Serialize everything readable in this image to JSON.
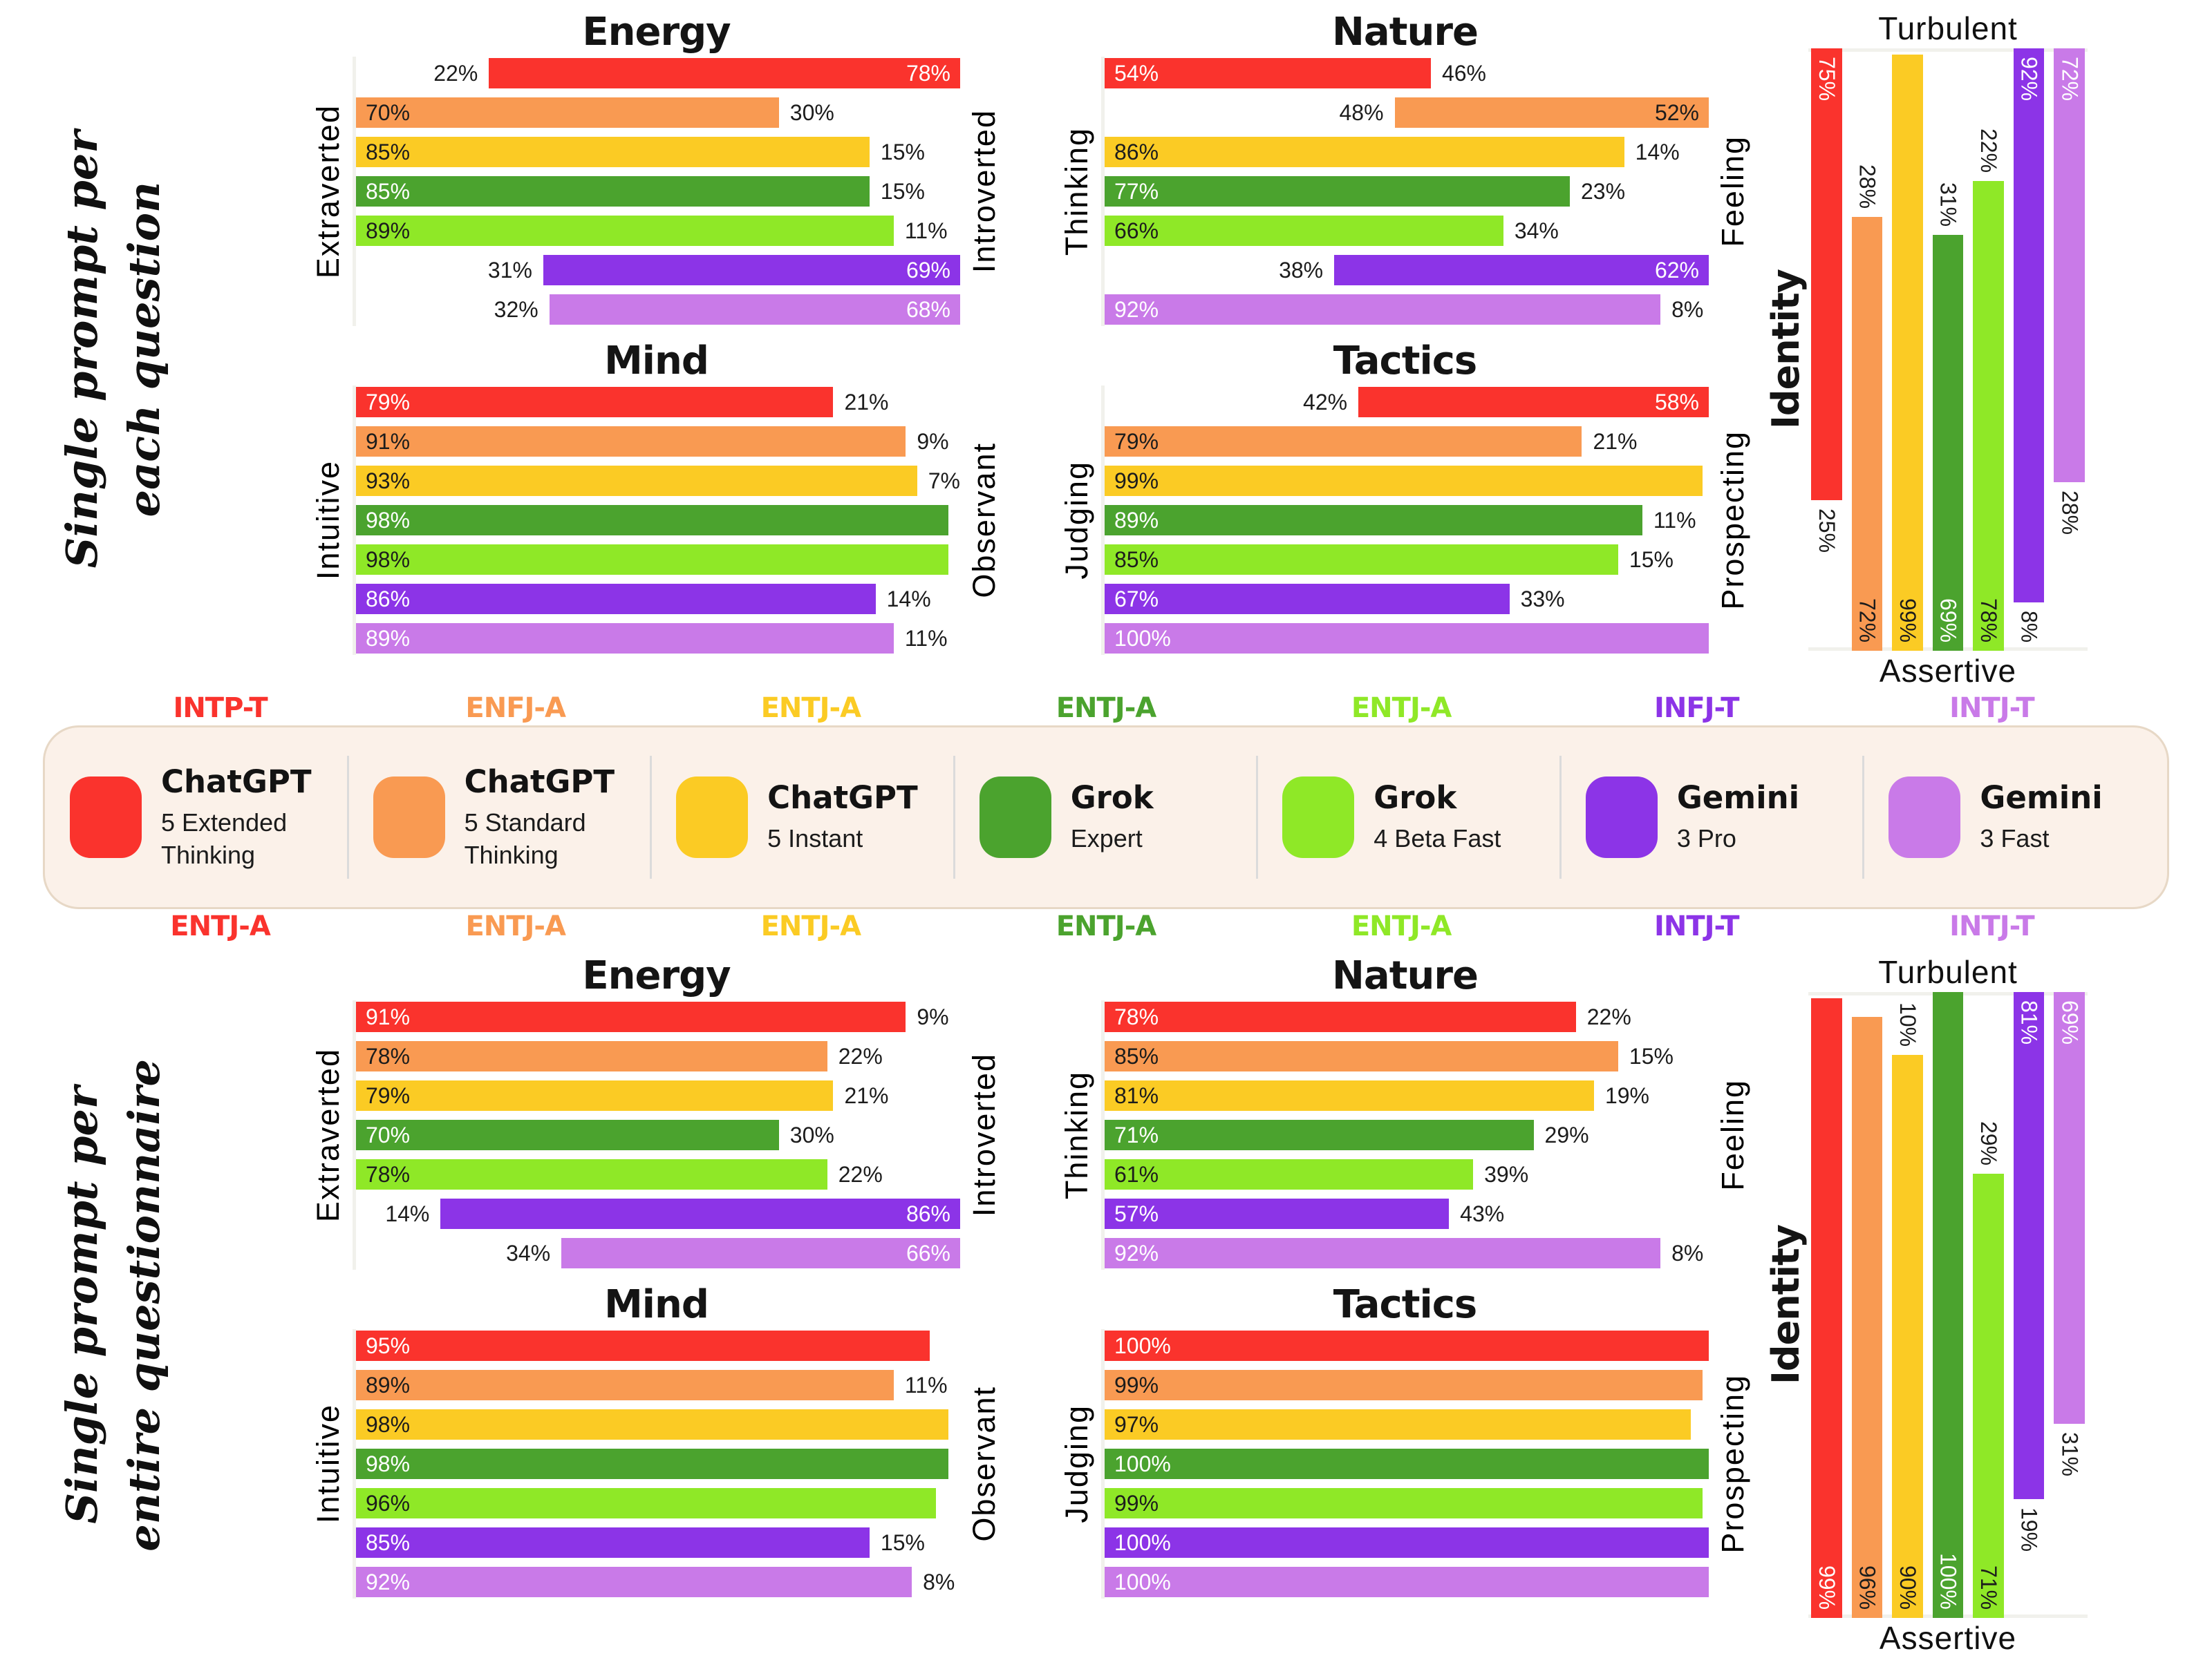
{
  "colors": {
    "red": "#FA332D",
    "orange": "#F99A52",
    "yellow": "#FBCB24",
    "green": "#4BA32E",
    "lime": "#8FE827",
    "purple": "#8C34E7",
    "lilac": "#C97AE8",
    "inside_label_light": "#FFFFFF",
    "inside_label_dark": "#1C1C1C",
    "legend_bg": "#FBF1E9",
    "legend_border": "#E7D8C6",
    "axis_line": "#F1F1EC"
  },
  "inside_label_ink": {
    "red": "light",
    "orange": "dark",
    "yellow": "dark",
    "green": "light",
    "lime": "dark",
    "purple": "light",
    "lilac": "light"
  },
  "series_order": [
    "red",
    "orange",
    "yellow",
    "green",
    "lime",
    "purple",
    "lilac"
  ],
  "legend": {
    "items": [
      {
        "series": "red",
        "name": "ChatGPT",
        "variant": "5 Extended Thinking"
      },
      {
        "series": "orange",
        "name": "ChatGPT",
        "variant": "5 Standard Thinking"
      },
      {
        "series": "yellow",
        "name": "ChatGPT",
        "variant": "5 Instant"
      },
      {
        "series": "green",
        "name": "Grok",
        "variant": "Expert"
      },
      {
        "series": "lime",
        "name": "Grok",
        "variant": "4 Beta Fast"
      },
      {
        "series": "purple",
        "name": "Gemini",
        "variant": "3 Pro"
      },
      {
        "series": "lilac",
        "name": "Gemini",
        "variant": "3 Fast"
      }
    ]
  },
  "sections": [
    {
      "id": "per-question",
      "title_lines": [
        "Single prompt per",
        "each question"
      ],
      "results": [
        {
          "series": "red",
          "mbti": "INTP-T"
        },
        {
          "series": "orange",
          "mbti": "ENFJ-A"
        },
        {
          "series": "yellow",
          "mbti": "ENTJ-A"
        },
        {
          "series": "green",
          "mbti": "ENTJ-A"
        },
        {
          "series": "lime",
          "mbti": "ENTJ-A"
        },
        {
          "series": "purple",
          "mbti": "INFJ-T"
        },
        {
          "series": "lilac",
          "mbti": "INTJ-T"
        }
      ]
    },
    {
      "id": "per-questionnaire",
      "title_lines": [
        "Single prompt per",
        "entire questionnaire"
      ],
      "results": [
        {
          "series": "red",
          "mbti": "ENTJ-A"
        },
        {
          "series": "orange",
          "mbti": "ENTJ-A"
        },
        {
          "series": "yellow",
          "mbti": "ENTJ-A"
        },
        {
          "series": "green",
          "mbti": "ENTJ-A"
        },
        {
          "series": "lime",
          "mbti": "ENTJ-A"
        },
        {
          "series": "purple",
          "mbti": "INTJ-T"
        },
        {
          "series": "lilac",
          "mbti": "INTJ-T"
        }
      ]
    }
  ],
  "chart_data": [
    {
      "section_id": "per-question",
      "type": "bar",
      "orientation": "horizontal",
      "title": "Energy",
      "axis_left": "Extraverted",
      "axis_right": "Introverted",
      "unit": "%",
      "rows": [
        {
          "series": "red",
          "side": "right",
          "value": 78,
          "label": "78%",
          "other": "22%"
        },
        {
          "series": "orange",
          "side": "left",
          "value": 70,
          "label": "70%",
          "other": "30%"
        },
        {
          "series": "yellow",
          "side": "left",
          "value": 85,
          "label": "85%",
          "other": "15%"
        },
        {
          "series": "green",
          "side": "left",
          "value": 85,
          "label": "85%",
          "other": "15%"
        },
        {
          "series": "lime",
          "side": "left",
          "value": 89,
          "label": "89%",
          "other": "11%"
        },
        {
          "series": "purple",
          "side": "right",
          "value": 69,
          "label": "69%",
          "other": "31%"
        },
        {
          "series": "lilac",
          "side": "right",
          "value": 68,
          "label": "68%",
          "other": "32%"
        }
      ]
    },
    {
      "section_id": "per-question",
      "type": "bar",
      "orientation": "horizontal",
      "title": "Nature",
      "axis_left": "Thinking",
      "axis_right": "Feeling",
      "unit": "%",
      "rows": [
        {
          "series": "red",
          "side": "left",
          "value": 54,
          "label": "54%",
          "other": "46%"
        },
        {
          "series": "orange",
          "side": "right",
          "value": 52,
          "label": "52%",
          "other": "48%"
        },
        {
          "series": "yellow",
          "side": "left",
          "value": 86,
          "label": "86%",
          "other": "14%"
        },
        {
          "series": "green",
          "side": "left",
          "value": 77,
          "label": "77%",
          "other": "23%"
        },
        {
          "series": "lime",
          "side": "left",
          "value": 66,
          "label": "66%",
          "other": "34%"
        },
        {
          "series": "purple",
          "side": "right",
          "value": 62,
          "label": "62%",
          "other": "38%"
        },
        {
          "series": "lilac",
          "side": "left",
          "value": 92,
          "label": "92%",
          "other": "8%"
        }
      ]
    },
    {
      "section_id": "per-question",
      "type": "bar",
      "orientation": "horizontal",
      "title": "Mind",
      "axis_left": "Intuitive",
      "axis_right": "Observant",
      "unit": "%",
      "rows": [
        {
          "series": "red",
          "side": "left",
          "value": 79,
          "label": "79%",
          "other": "21%"
        },
        {
          "series": "orange",
          "side": "left",
          "value": 91,
          "label": "91%",
          "other": "9%"
        },
        {
          "series": "yellow",
          "side": "left",
          "value": 93,
          "label": "93%",
          "other": "7%"
        },
        {
          "series": "green",
          "side": "left",
          "value": 98,
          "label": "98%",
          "other": ""
        },
        {
          "series": "lime",
          "side": "left",
          "value": 98,
          "label": "98%",
          "other": ""
        },
        {
          "series": "purple",
          "side": "left",
          "value": 86,
          "label": "86%",
          "other": "14%"
        },
        {
          "series": "lilac",
          "side": "left",
          "value": 89,
          "label": "89%",
          "other": "11%"
        }
      ]
    },
    {
      "section_id": "per-question",
      "type": "bar",
      "orientation": "horizontal",
      "title": "Tactics",
      "axis_left": "Judging",
      "axis_right": "Prospecting",
      "unit": "%",
      "rows": [
        {
          "series": "red",
          "side": "right",
          "value": 58,
          "label": "58%",
          "other": "42%"
        },
        {
          "series": "orange",
          "side": "left",
          "value": 79,
          "label": "79%",
          "other": "21%"
        },
        {
          "series": "yellow",
          "side": "left",
          "value": 99,
          "label": "99%",
          "other": ""
        },
        {
          "series": "green",
          "side": "left",
          "value": 89,
          "label": "89%",
          "other": "11%"
        },
        {
          "series": "lime",
          "side": "left",
          "value": 85,
          "label": "85%",
          "other": "15%"
        },
        {
          "series": "purple",
          "side": "left",
          "value": 67,
          "label": "67%",
          "other": "33%"
        },
        {
          "series": "lilac",
          "side": "left",
          "value": 100,
          "label": "100%",
          "other": ""
        }
      ]
    },
    {
      "section_id": "per-question",
      "type": "bar",
      "orientation": "vertical",
      "title": "Identity",
      "axis_top": "Turbulent",
      "axis_bottom": "Assertive",
      "unit": "%",
      "bars": [
        {
          "series": "red",
          "anchor": "top",
          "value": 75,
          "label": "75%",
          "other": "25%"
        },
        {
          "series": "orange",
          "anchor": "bottom",
          "value": 72,
          "label": "72%",
          "other": "28%"
        },
        {
          "series": "yellow",
          "anchor": "bottom",
          "value": 99,
          "label": "99%",
          "other": ""
        },
        {
          "series": "green",
          "anchor": "bottom",
          "value": 69,
          "label": "69%",
          "other": "31%"
        },
        {
          "series": "lime",
          "anchor": "bottom",
          "value": 78,
          "label": "78%",
          "other": "22%"
        },
        {
          "series": "purple",
          "anchor": "top",
          "value": 92,
          "label": "92%",
          "other": "8%"
        },
        {
          "series": "lilac",
          "anchor": "top",
          "value": 72,
          "label": "72%",
          "other": "28%"
        }
      ]
    },
    {
      "section_id": "per-questionnaire",
      "type": "bar",
      "orientation": "horizontal",
      "title": "Energy",
      "axis_left": "Extraverted",
      "axis_right": "Introverted",
      "unit": "%",
      "rows": [
        {
          "series": "red",
          "side": "left",
          "value": 91,
          "label": "91%",
          "other": "9%"
        },
        {
          "series": "orange",
          "side": "left",
          "value": 78,
          "label": "78%",
          "other": "22%"
        },
        {
          "series": "yellow",
          "side": "left",
          "value": 79,
          "label": "79%",
          "other": "21%"
        },
        {
          "series": "green",
          "side": "left",
          "value": 70,
          "label": "70%",
          "other": "30%"
        },
        {
          "series": "lime",
          "side": "left",
          "value": 78,
          "label": "78%",
          "other": "22%"
        },
        {
          "series": "purple",
          "side": "right",
          "value": 86,
          "label": "86%",
          "other": "14%"
        },
        {
          "series": "lilac",
          "side": "right",
          "value": 66,
          "label": "66%",
          "other": "34%"
        }
      ]
    },
    {
      "section_id": "per-questionnaire",
      "type": "bar",
      "orientation": "horizontal",
      "title": "Nature",
      "axis_left": "Thinking",
      "axis_right": "Feeling",
      "unit": "%",
      "rows": [
        {
          "series": "red",
          "side": "left",
          "value": 78,
          "label": "78%",
          "other": "22%"
        },
        {
          "series": "orange",
          "side": "left",
          "value": 85,
          "label": "85%",
          "other": "15%"
        },
        {
          "series": "yellow",
          "side": "left",
          "value": 81,
          "label": "81%",
          "other": "19%"
        },
        {
          "series": "green",
          "side": "left",
          "value": 71,
          "label": "71%",
          "other": "29%"
        },
        {
          "series": "lime",
          "side": "left",
          "value": 61,
          "label": "61%",
          "other": "39%"
        },
        {
          "series": "purple",
          "side": "left",
          "value": 57,
          "label": "57%",
          "other": "43%"
        },
        {
          "series": "lilac",
          "side": "left",
          "value": 92,
          "label": "92%",
          "other": "8%"
        }
      ]
    },
    {
      "section_id": "per-questionnaire",
      "type": "bar",
      "orientation": "horizontal",
      "title": "Mind",
      "axis_left": "Intuitive",
      "axis_right": "Observant",
      "unit": "%",
      "rows": [
        {
          "series": "red",
          "side": "left",
          "value": 95,
          "label": "95%",
          "other": ""
        },
        {
          "series": "orange",
          "side": "left",
          "value": 89,
          "label": "89%",
          "other": "11%"
        },
        {
          "series": "yellow",
          "side": "left",
          "value": 98,
          "label": "98%",
          "other": ""
        },
        {
          "series": "green",
          "side": "left",
          "value": 98,
          "label": "98%",
          "other": ""
        },
        {
          "series": "lime",
          "side": "left",
          "value": 96,
          "label": "96%",
          "other": ""
        },
        {
          "series": "purple",
          "side": "left",
          "value": 85,
          "label": "85%",
          "other": "15%"
        },
        {
          "series": "lilac",
          "side": "left",
          "value": 92,
          "label": "92%",
          "other": "8%"
        }
      ]
    },
    {
      "section_id": "per-questionnaire",
      "type": "bar",
      "orientation": "horizontal",
      "title": "Tactics",
      "axis_left": "Judging",
      "axis_right": "Prospecting",
      "unit": "%",
      "rows": [
        {
          "series": "red",
          "side": "left",
          "value": 100,
          "label": "100%",
          "other": ""
        },
        {
          "series": "orange",
          "side": "left",
          "value": 99,
          "label": "99%",
          "other": ""
        },
        {
          "series": "yellow",
          "side": "left",
          "value": 97,
          "label": "97%",
          "other": ""
        },
        {
          "series": "green",
          "side": "left",
          "value": 100,
          "label": "100%",
          "other": ""
        },
        {
          "series": "lime",
          "side": "left",
          "value": 99,
          "label": "99%",
          "other": ""
        },
        {
          "series": "purple",
          "side": "left",
          "value": 100,
          "label": "100%",
          "other": ""
        },
        {
          "series": "lilac",
          "side": "left",
          "value": 100,
          "label": "100%",
          "other": ""
        }
      ]
    },
    {
      "section_id": "per-questionnaire",
      "type": "bar",
      "orientation": "vertical",
      "title": "Identity",
      "axis_top": "Turbulent",
      "axis_bottom": "Assertive",
      "unit": "%",
      "bars": [
        {
          "series": "red",
          "anchor": "bottom",
          "value": 99,
          "label": "99%",
          "other": ""
        },
        {
          "series": "orange",
          "anchor": "bottom",
          "value": 96,
          "label": "96%",
          "other": ""
        },
        {
          "series": "yellow",
          "anchor": "bottom",
          "value": 90,
          "label": "90%",
          "other": "10%"
        },
        {
          "series": "green",
          "anchor": "bottom",
          "value": 100,
          "label": "100%",
          "other": ""
        },
        {
          "series": "lime",
          "anchor": "bottom",
          "value": 71,
          "label": "71%",
          "other": "29%"
        },
        {
          "series": "purple",
          "anchor": "top",
          "value": 81,
          "label": "81%",
          "other": "19%"
        },
        {
          "series": "lilac",
          "anchor": "top",
          "value": 69,
          "label": "69%",
          "other": "31%"
        }
      ]
    }
  ]
}
